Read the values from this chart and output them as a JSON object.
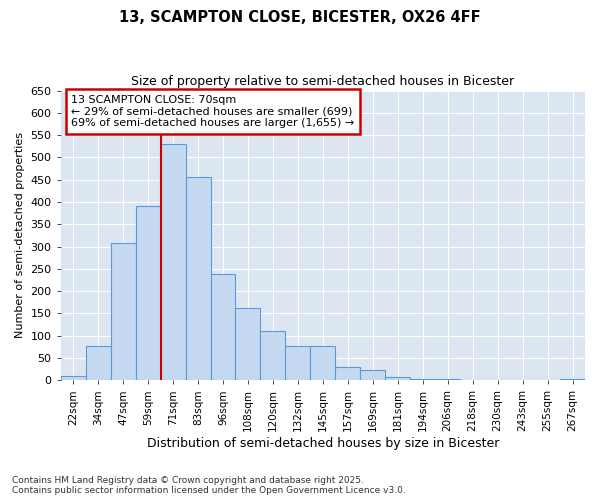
{
  "title1": "13, SCAMPTON CLOSE, BICESTER, OX26 4FF",
  "title2": "Size of property relative to semi-detached houses in Bicester",
  "xlabel": "Distribution of semi-detached houses by size in Bicester",
  "ylabel": "Number of semi-detached properties",
  "bar_labels": [
    "22sqm",
    "34sqm",
    "47sqm",
    "59sqm",
    "71sqm",
    "83sqm",
    "96sqm",
    "108sqm",
    "120sqm",
    "132sqm",
    "145sqm",
    "157sqm",
    "169sqm",
    "181sqm",
    "194sqm",
    "206sqm",
    "218sqm",
    "230sqm",
    "243sqm",
    "255sqm",
    "267sqm"
  ],
  "bar_values": [
    10,
    78,
    308,
    390,
    530,
    455,
    238,
    163,
    110,
    78,
    78,
    30,
    22,
    7,
    3,
    2,
    1,
    1,
    1,
    1,
    2
  ],
  "bar_color": "#c5d9f1",
  "bar_edge_color": "#5b9bd5",
  "vline_x_idx": 4,
  "annotation_title": "13 SCAMPTON CLOSE: 70sqm",
  "annotation_line1": "← 29% of semi-detached houses are smaller (699)",
  "annotation_line2": "69% of semi-detached houses are larger (1,655) →",
  "annotation_box_color": "#ffffff",
  "annotation_box_edge": "#cc0000",
  "vline_color": "#cc0000",
  "ylim": [
    0,
    650
  ],
  "yticks": [
    0,
    50,
    100,
    150,
    200,
    250,
    300,
    350,
    400,
    450,
    500,
    550,
    600,
    650
  ],
  "fig_bg_color": "#ffffff",
  "plot_bg_color": "#dce6f1",
  "grid_color": "#ffffff",
  "footer1": "Contains HM Land Registry data © Crown copyright and database right 2025.",
  "footer2": "Contains public sector information licensed under the Open Government Licence v3.0."
}
